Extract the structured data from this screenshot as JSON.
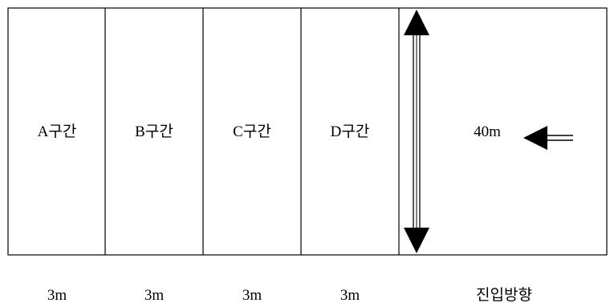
{
  "zones": [
    {
      "label": "A구간",
      "width_label": "3m"
    },
    {
      "label": "B구간",
      "width_label": "3m"
    },
    {
      "label": "C구간",
      "width_label": "3m"
    },
    {
      "label": "D구간",
      "width_label": "3m"
    }
  ],
  "approach_zone": {
    "length_label": "40m",
    "direction_label": "진입방향"
  },
  "icons": {
    "vertical_arrow": "double-headed-vertical-arrow-icon",
    "entry_arrow": "left-arrow-icon"
  },
  "colors": {
    "line": "#000000",
    "background": "#ffffff"
  }
}
